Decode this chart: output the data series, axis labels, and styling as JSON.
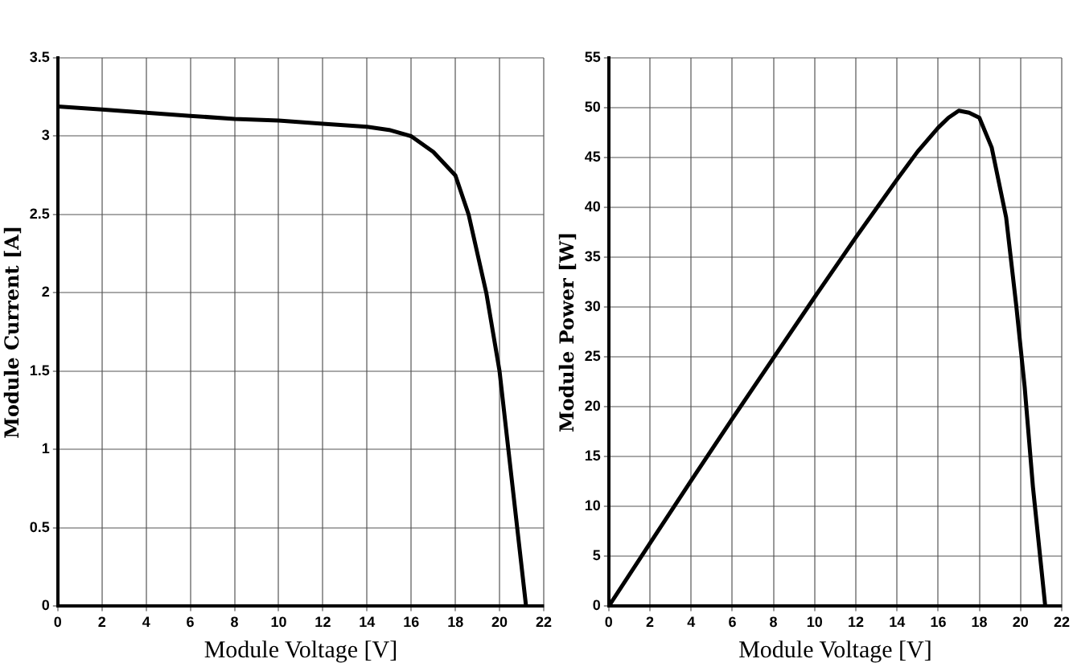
{
  "chart_data": [
    {
      "type": "line",
      "xlabel": "Module Voltage [V]",
      "ylabel": "Module Current [A]",
      "xlim": [
        0,
        22
      ],
      "xticks": [
        0,
        2,
        4,
        6,
        8,
        10,
        12,
        14,
        16,
        18,
        20,
        22
      ],
      "ylim": [
        0,
        3.5
      ],
      "yticks": [
        0,
        0.5,
        1,
        1.5,
        2,
        2.5,
        3,
        3.5
      ],
      "grid": true,
      "marker": "none",
      "line_style": "solid",
      "legend": false,
      "series": [
        {
          "color": "#000000",
          "x": [
            0,
            2,
            4,
            6,
            8,
            10,
            12,
            14,
            15,
            16,
            17,
            18,
            18.6,
            19.4,
            20,
            20.4,
            20.8,
            21.2
          ],
          "values": [
            3.19,
            3.17,
            3.15,
            3.13,
            3.11,
            3.1,
            3.08,
            3.06,
            3.04,
            3.0,
            2.9,
            2.75,
            2.5,
            2.0,
            1.5,
            1.0,
            0.5,
            0
          ]
        }
      ]
    },
    {
      "type": "line",
      "xlabel": "Module Voltage [V]",
      "ylabel": "Module Power [W]",
      "xlim": [
        0,
        22
      ],
      "xticks": [
        0,
        2,
        4,
        6,
        8,
        10,
        12,
        14,
        16,
        18,
        20,
        22
      ],
      "ylim": [
        0,
        55
      ],
      "yticks": [
        0,
        5,
        10,
        15,
        20,
        25,
        30,
        35,
        40,
        45,
        50,
        55
      ],
      "grid": true,
      "marker": "none",
      "line_style": "solid",
      "legend": false,
      "series": [
        {
          "color": "#000000",
          "x": [
            0,
            2,
            4,
            6,
            8,
            10,
            12,
            14,
            15,
            16,
            16.5,
            17,
            17.5,
            18,
            18.6,
            19.3,
            19.8,
            20.2,
            20.6,
            21,
            21.2
          ],
          "values": [
            0,
            6.3,
            12.6,
            18.8,
            24.9,
            31,
            37,
            42.8,
            45.6,
            48,
            49,
            49.7,
            49.5,
            49,
            46,
            39,
            30,
            22,
            12,
            4,
            0
          ]
        }
      ]
    }
  ]
}
